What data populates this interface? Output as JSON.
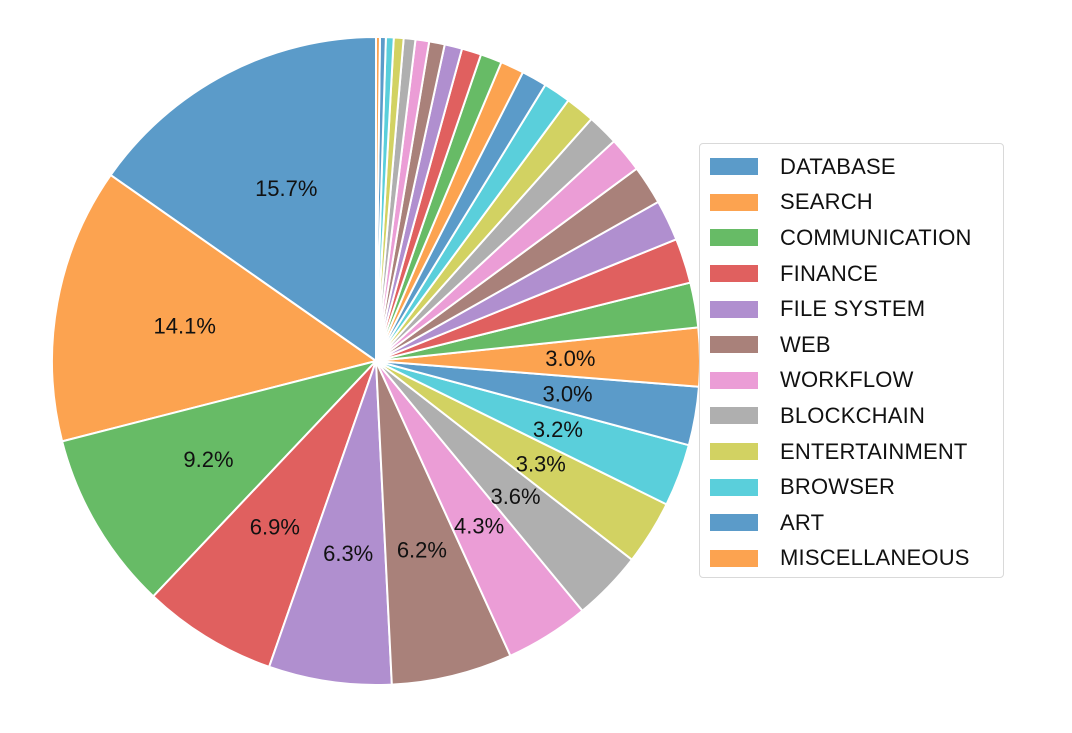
{
  "chart_data": {
    "type": "pie",
    "title": "",
    "start_angle_deg": 90,
    "direction": "counterclockwise",
    "legend_position": "right",
    "slices": [
      {
        "label": "DATABASE",
        "value": 15.7,
        "pct_label": "15.7%",
        "color": "#5b9bc9"
      },
      {
        "label": "SEARCH",
        "value": 14.1,
        "pct_label": "14.1%",
        "color": "#fca350"
      },
      {
        "label": "COMMUNICATION",
        "value": 9.2,
        "pct_label": "9.2%",
        "color": "#67bb66"
      },
      {
        "label": "FINANCE",
        "value": 6.9,
        "pct_label": "6.9%",
        "color": "#e0605f"
      },
      {
        "label": "FILE SYSTEM",
        "value": 6.3,
        "pct_label": "6.3%",
        "color": "#b08fcf"
      },
      {
        "label": "WEB",
        "value": 6.2,
        "pct_label": "6.2%",
        "color": "#a9817a"
      },
      {
        "label": "WORKFLOW",
        "value": 4.3,
        "pct_label": "4.3%",
        "color": "#eb9dd6"
      },
      {
        "label": "BLOCKCHAIN",
        "value": 3.6,
        "pct_label": "3.6%",
        "color": "#afafaf"
      },
      {
        "label": "ENTERTAINMENT",
        "value": 3.3,
        "pct_label": "3.3%",
        "color": "#d2d262"
      },
      {
        "label": "BROWSER",
        "value": 3.2,
        "pct_label": "3.2%",
        "color": "#5acfdb"
      },
      {
        "label": "ART",
        "value": 3.0,
        "pct_label": "3.0%",
        "color": "#5b9bc9"
      },
      {
        "label": "MISCELLANEOUS",
        "value": 3.0,
        "pct_label": "3.0%",
        "color": "#fca350"
      },
      {
        "label": "",
        "value": 2.3,
        "pct_label": "",
        "color": "#67bb66"
      },
      {
        "label": "",
        "value": 2.3,
        "pct_label": "",
        "color": "#e0605f"
      },
      {
        "label": "",
        "value": 2.1,
        "pct_label": "",
        "color": "#b08fcf"
      },
      {
        "label": "",
        "value": 2.0,
        "pct_label": "",
        "color": "#a9817a"
      },
      {
        "label": "",
        "value": 1.8,
        "pct_label": "",
        "color": "#eb9dd6"
      },
      {
        "label": "",
        "value": 1.6,
        "pct_label": "",
        "color": "#afafaf"
      },
      {
        "label": "",
        "value": 1.5,
        "pct_label": "",
        "color": "#d2d262"
      },
      {
        "label": "",
        "value": 1.4,
        "pct_label": "",
        "color": "#5acfdb"
      },
      {
        "label": "",
        "value": 1.3,
        "pct_label": "",
        "color": "#5b9bc9"
      },
      {
        "label": "",
        "value": 1.2,
        "pct_label": "",
        "color": "#fca350"
      },
      {
        "label": "",
        "value": 1.1,
        "pct_label": "",
        "color": "#67bb66"
      },
      {
        "label": "",
        "value": 1.0,
        "pct_label": "",
        "color": "#e0605f"
      },
      {
        "label": "",
        "value": 0.9,
        "pct_label": "",
        "color": "#b08fcf"
      },
      {
        "label": "",
        "value": 0.8,
        "pct_label": "",
        "color": "#a9817a"
      },
      {
        "label": "",
        "value": 0.7,
        "pct_label": "",
        "color": "#eb9dd6"
      },
      {
        "label": "",
        "value": 0.6,
        "pct_label": "",
        "color": "#afafaf"
      },
      {
        "label": "",
        "value": 0.5,
        "pct_label": "",
        "color": "#d2d262"
      },
      {
        "label": "",
        "value": 0.4,
        "pct_label": "",
        "color": "#5acfdb"
      },
      {
        "label": "",
        "value": 0.3,
        "pct_label": "",
        "color": "#5b9bc9"
      },
      {
        "label": "",
        "value": 0.2,
        "pct_label": "",
        "color": "#fca350"
      }
    ]
  }
}
